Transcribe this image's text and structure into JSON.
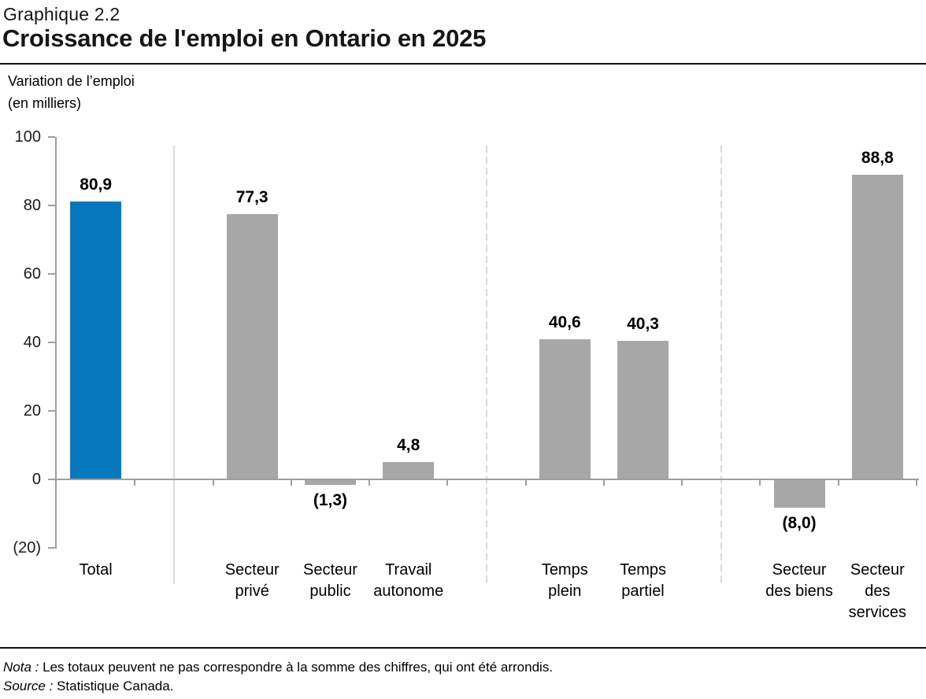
{
  "header": {
    "chart_number": "Graphique 2.2",
    "title": "Croissance de l'emploi en Ontario en 2025"
  },
  "axis_unit": {
    "line1": "Variation de l’emploi",
    "line2": "(en milliers)"
  },
  "notes": {
    "nota_label": "Nota :",
    "nota_text": "Les totaux peuvent ne pas correspondre à la somme des chiffres, qui ont été arrondis.",
    "source_label": "Source :",
    "source_text": "Statistique Canada."
  },
  "colors": {
    "highlight_bar": "#0878BE",
    "default_bar": "#A7A7A7",
    "axis": "#9E9E9E",
    "divider": "#D9D9D9"
  },
  "chart_data": {
    "type": "bar",
    "title": "Croissance de l'emploi en Ontario en 2025",
    "ylabel": "Variation de l’emploi (en milliers)",
    "ylim": [
      -20,
      100
    ],
    "grid": false,
    "legend": false,
    "y_ticks": [
      {
        "value": 100,
        "label": "100"
      },
      {
        "value": 80,
        "label": "80"
      },
      {
        "value": 60,
        "label": "60"
      },
      {
        "value": 40,
        "label": "40"
      },
      {
        "value": 20,
        "label": "20"
      },
      {
        "value": 0,
        "label": "0"
      },
      {
        "value": -20,
        "label": "(20)"
      }
    ],
    "categories": [
      {
        "label_lines": [
          "Total"
        ],
        "value": 80.9,
        "display": "80,9",
        "highlight": true
      },
      {
        "spacer": true,
        "divider": "solid"
      },
      {
        "label_lines": [
          "Secteur",
          "privé"
        ],
        "value": 77.3,
        "display": "77,3"
      },
      {
        "label_lines": [
          "Secteur",
          "public"
        ],
        "value": -1.3,
        "display": "(1,3)"
      },
      {
        "label_lines": [
          "Travail",
          "autonome"
        ],
        "value": 4.8,
        "display": "4,8"
      },
      {
        "spacer": true,
        "divider": "dashed"
      },
      {
        "label_lines": [
          "Temps",
          "plein"
        ],
        "value": 40.6,
        "display": "40,6"
      },
      {
        "label_lines": [
          "Temps",
          "partiel"
        ],
        "value": 40.3,
        "display": "40,3"
      },
      {
        "spacer": true,
        "divider": "dashed"
      },
      {
        "label_lines": [
          "Secteur",
          "des biens"
        ],
        "value": -8.0,
        "display": "(8,0)"
      },
      {
        "label_lines": [
          "Secteur",
          "des",
          "services"
        ],
        "value": 88.8,
        "display": "88,8"
      }
    ]
  }
}
